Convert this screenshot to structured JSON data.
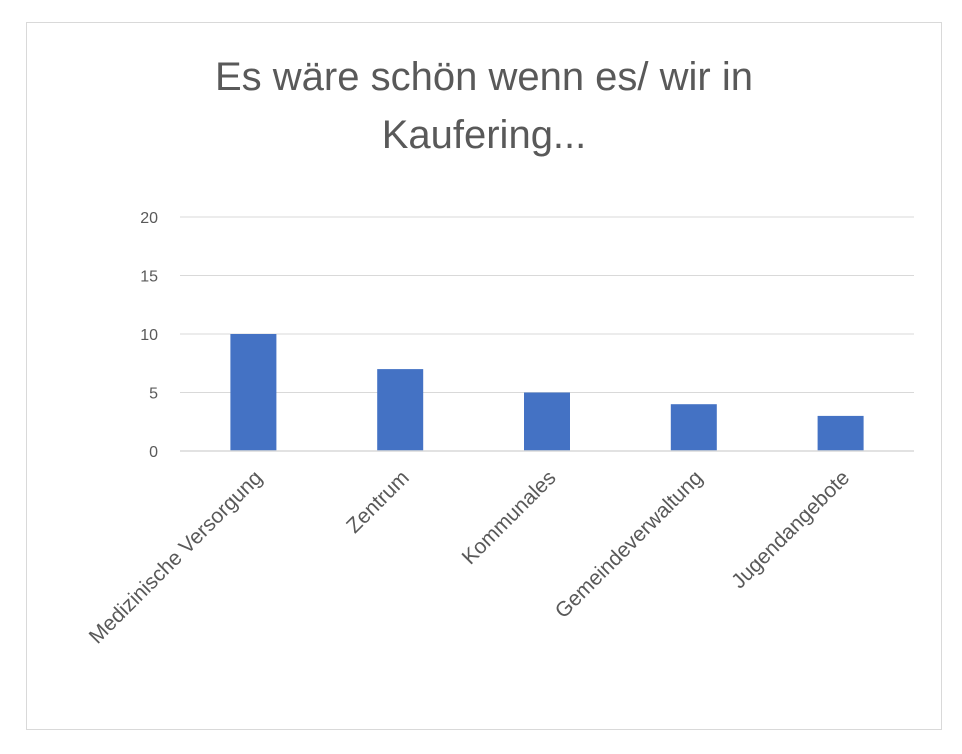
{
  "chart_data": {
    "type": "bar",
    "title_lines": [
      "Es wäre schön wenn es/ wir in",
      "Kaufering..."
    ],
    "categories": [
      "Medizinische Versorgung",
      "Zentrum",
      "Kommunales",
      "Gemeindeverwaltung",
      "Jugendangebote"
    ],
    "values": [
      10,
      7,
      5,
      4,
      3
    ],
    "ylim": [
      0,
      20
    ],
    "yticks": [
      0,
      5,
      10,
      15,
      20
    ],
    "xlabel": "",
    "ylabel": "",
    "grid": true,
    "legend": "none",
    "bar_color": "#4472c4",
    "grid_color": "#d9d9d9",
    "text_color": "#595959"
  }
}
